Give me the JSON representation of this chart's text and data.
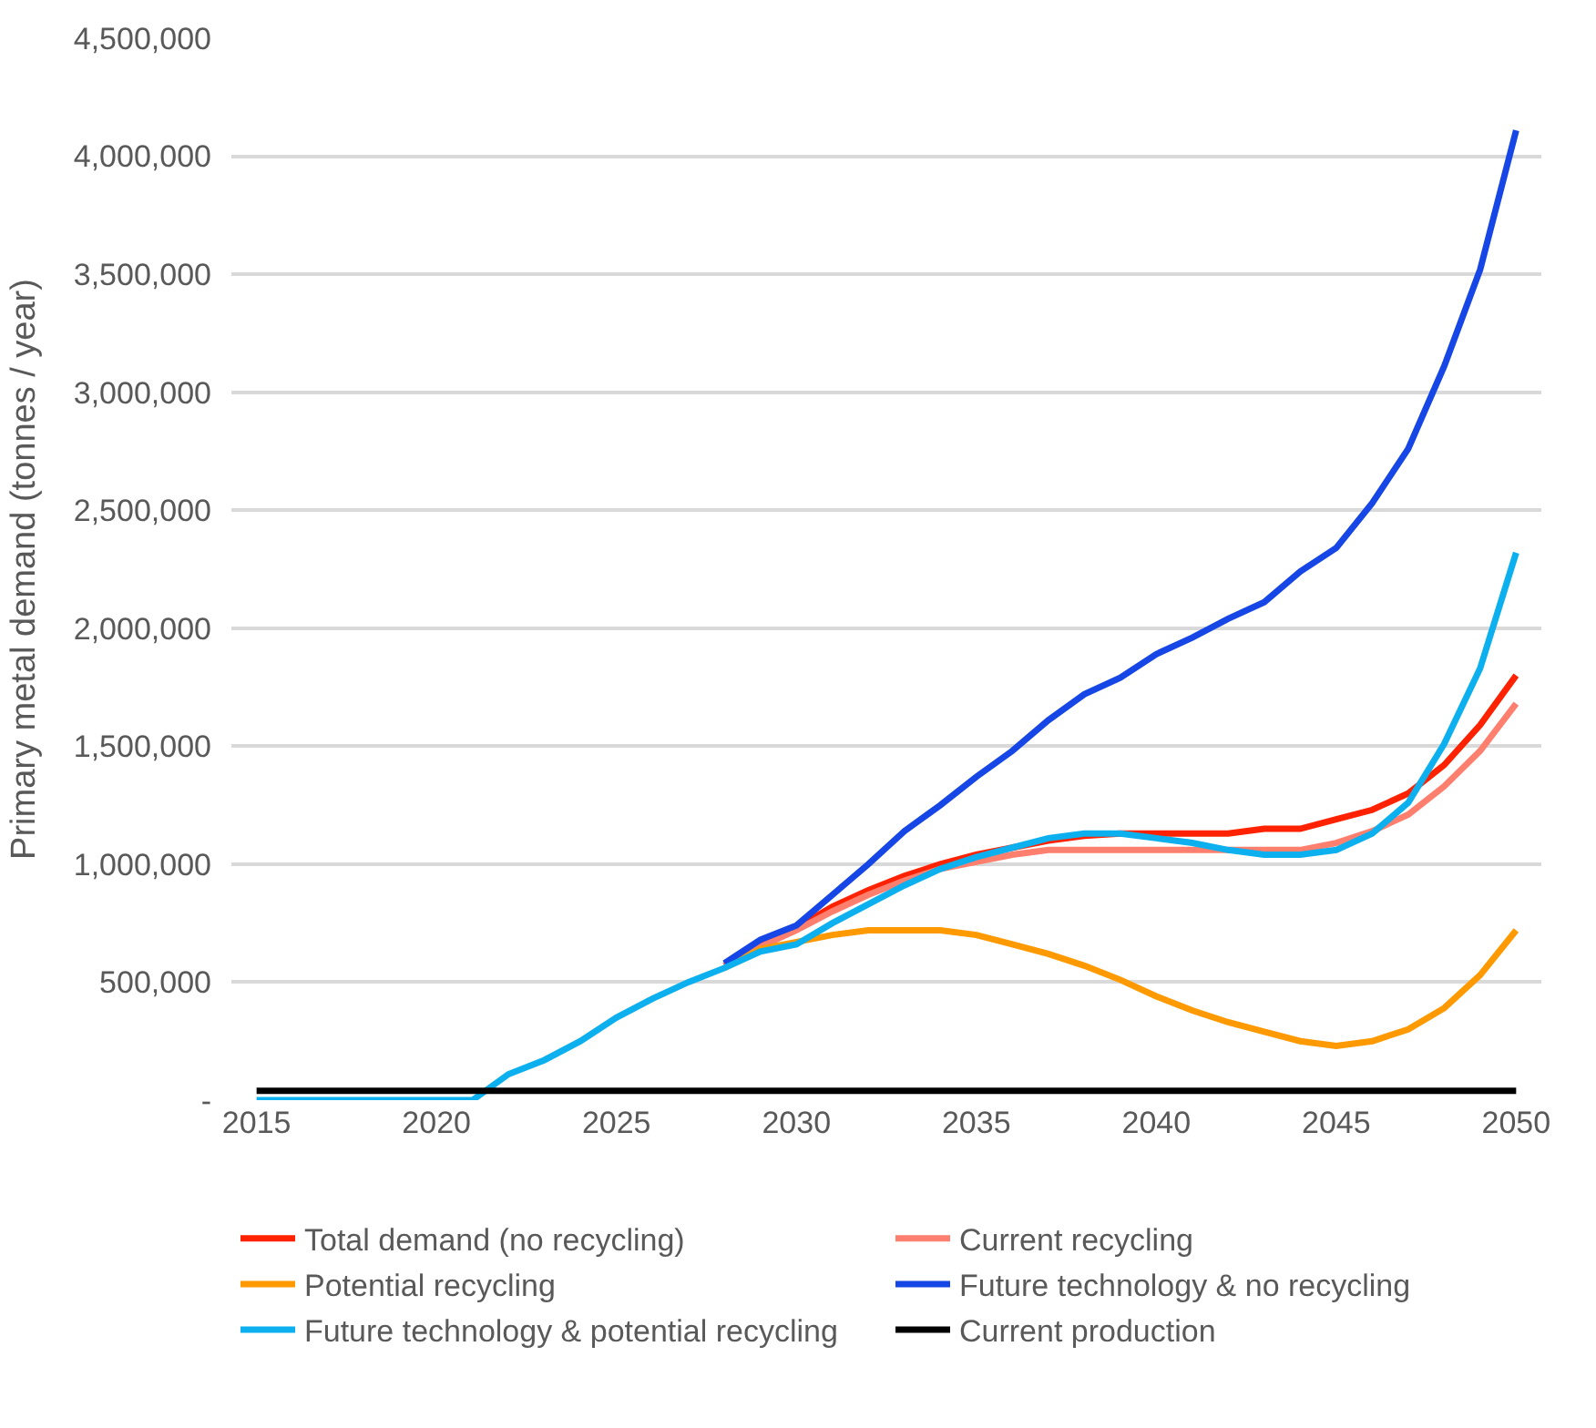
{
  "chart_data": {
    "type": "line",
    "ylabel": "Primary metal demand (tonnes / year)",
    "x": [
      2015,
      2016,
      2017,
      2018,
      2019,
      2020,
      2021,
      2022,
      2023,
      2024,
      2025,
      2026,
      2027,
      2028,
      2029,
      2030,
      2031,
      2032,
      2033,
      2034,
      2035,
      2036,
      2037,
      2038,
      2039,
      2040,
      2041,
      2042,
      2043,
      2044,
      2045,
      2046,
      2047,
      2048,
      2049,
      2050
    ],
    "xlim": [
      2014.3,
      2050.7
    ],
    "xticks": [
      2015,
      2020,
      2025,
      2030,
      2035,
      2040,
      2045,
      2050
    ],
    "ylim": [
      0,
      4500000
    ],
    "yticks": [
      {
        "value": 0,
        "label": "-"
      },
      {
        "value": 500000,
        "label": "500,000"
      },
      {
        "value": 1000000,
        "label": "1,000,000"
      },
      {
        "value": 1500000,
        "label": "1,500,000"
      },
      {
        "value": 2000000,
        "label": "2,000,000"
      },
      {
        "value": 2500000,
        "label": "2,500,000"
      },
      {
        "value": 3000000,
        "label": "3,000,000"
      },
      {
        "value": 3500000,
        "label": "3,500,000"
      },
      {
        "value": 4000000,
        "label": "4,000,000"
      },
      {
        "value": 4500000,
        "label": "4,500,000"
      }
    ],
    "grid": "y",
    "legend": "bottom",
    "marker": "none",
    "line_style": "solid",
    "series": [
      {
        "name": "Total demand (no recycling)",
        "color": "#ff2200",
        "values": [
          null,
          null,
          null,
          null,
          null,
          null,
          null,
          null,
          null,
          null,
          null,
          null,
          null,
          570000,
          660000,
          730000,
          820000,
          890000,
          950000,
          1000000,
          1040000,
          1070000,
          1100000,
          1120000,
          1130000,
          1130000,
          1130000,
          1130000,
          1150000,
          1150000,
          1190000,
          1230000,
          1300000,
          1420000,
          1590000,
          1800000
        ]
      },
      {
        "name": "Current recycling",
        "color": "#ff7f6e",
        "values": [
          null,
          null,
          null,
          null,
          null,
          null,
          null,
          null,
          null,
          null,
          null,
          null,
          null,
          570000,
          650000,
          720000,
          800000,
          870000,
          930000,
          980000,
          1010000,
          1040000,
          1060000,
          1060000,
          1060000,
          1060000,
          1060000,
          1060000,
          1060000,
          1060000,
          1090000,
          1140000,
          1210000,
          1330000,
          1480000,
          1680000
        ]
      },
      {
        "name": "Potential recycling",
        "color": "#ff9900",
        "values": [
          null,
          null,
          null,
          null,
          null,
          null,
          null,
          null,
          null,
          null,
          null,
          null,
          null,
          560000,
          640000,
          670000,
          700000,
          720000,
          720000,
          720000,
          700000,
          660000,
          620000,
          570000,
          510000,
          440000,
          380000,
          330000,
          290000,
          250000,
          230000,
          250000,
          300000,
          390000,
          530000,
          720000
        ]
      },
      {
        "name": "Future technology & no recycling",
        "color": "#1646e6",
        "values": [
          null,
          null,
          null,
          null,
          null,
          null,
          null,
          null,
          null,
          null,
          null,
          null,
          null,
          580000,
          680000,
          740000,
          870000,
          1000000,
          1140000,
          1250000,
          1370000,
          1480000,
          1610000,
          1720000,
          1790000,
          1890000,
          1960000,
          2040000,
          2110000,
          2240000,
          2340000,
          2530000,
          2760000,
          3110000,
          3520000,
          4110000
        ]
      },
      {
        "name": "Future technology & potential recycling",
        "color": "#0cb0ee",
        "values": [
          0,
          0,
          0,
          0,
          0,
          0,
          0,
          110000,
          170000,
          250000,
          350000,
          430000,
          500000,
          560000,
          630000,
          660000,
          750000,
          830000,
          910000,
          980000,
          1030000,
          1070000,
          1110000,
          1130000,
          1130000,
          1110000,
          1090000,
          1060000,
          1040000,
          1040000,
          1060000,
          1130000,
          1260000,
          1510000,
          1830000,
          2320000
        ]
      },
      {
        "name": "Current production",
        "color": "#000000",
        "values": [
          40000,
          40000,
          40000,
          40000,
          40000,
          40000,
          40000,
          40000,
          40000,
          40000,
          40000,
          40000,
          40000,
          40000,
          40000,
          40000,
          40000,
          40000,
          40000,
          40000,
          40000,
          40000,
          40000,
          40000,
          40000,
          40000,
          40000,
          40000,
          40000,
          40000,
          40000,
          40000,
          40000,
          40000,
          40000,
          40000
        ]
      }
    ]
  }
}
